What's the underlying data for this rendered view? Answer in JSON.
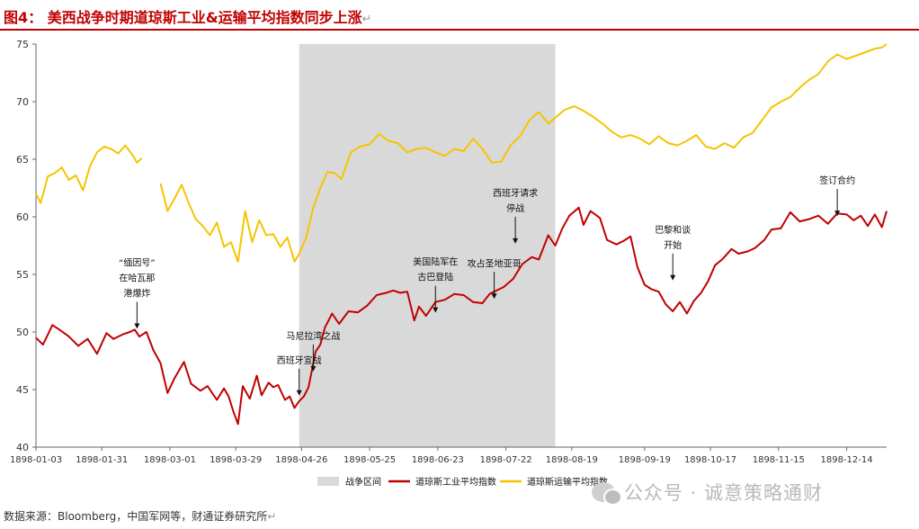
{
  "title": "图4：  美西战争时期道琼斯工业&运输平均指数同步上涨",
  "title_return_mark": "↵",
  "source": "数据来源：Bloomberg，中国军网等，财通证券研究所",
  "source_return_mark": "↵",
  "watermark": "公众号 · 诚意策略通财",
  "watermark_icon": "wechat-icon",
  "colors": {
    "industrial": "#c00000",
    "transport": "#f5c400",
    "war_band": "#d9d9d9",
    "title": "#c00000"
  },
  "chart_data": {
    "type": "line",
    "xlabel": "",
    "ylabel": "",
    "ylim": [
      40,
      75
    ],
    "yticks": [
      40,
      45,
      50,
      55,
      60,
      65,
      70,
      75
    ],
    "x_start": "1898-01-03",
    "x_end": "1898-12-31",
    "xticks": [
      "1898-01-03",
      "1898-01-31",
      "1898-03-01",
      "1898-03-29",
      "1898-04-26",
      "1898-05-25",
      "1898-06-23",
      "1898-07-22",
      "1898-08-19",
      "1898-09-19",
      "1898-10-17",
      "1898-11-15",
      "1898-12-14"
    ],
    "grid": false,
    "legend_position": "bottom",
    "shaded_region": {
      "name": "战争区间",
      "start": "1898-04-25",
      "end": "1898-08-12"
    },
    "series": [
      {
        "name": "道琼斯工业平均指数",
        "color": "#c00000",
        "x": [
          "1898-01-03",
          "1898-01-06",
          "1898-01-10",
          "1898-01-13",
          "1898-01-17",
          "1898-01-21",
          "1898-01-25",
          "1898-01-29",
          "1898-02-02",
          "1898-02-05",
          "1898-02-09",
          "1898-02-12",
          "1898-02-14",
          "1898-02-16",
          "1898-02-19",
          "1898-02-22",
          "1898-02-25",
          "1898-02-28",
          "1898-03-03",
          "1898-03-07",
          "1898-03-10",
          "1898-03-14",
          "1898-03-17",
          "1898-03-21",
          "1898-03-24",
          "1898-03-26",
          "1898-03-28",
          "1898-03-30",
          "1898-04-01",
          "1898-04-04",
          "1898-04-07",
          "1898-04-09",
          "1898-04-12",
          "1898-04-14",
          "1898-04-16",
          "1898-04-19",
          "1898-04-21",
          "1898-04-23",
          "1898-04-25",
          "1898-04-27",
          "1898-04-29",
          "1898-05-02",
          "1898-05-04",
          "1898-05-06",
          "1898-05-09",
          "1898-05-12",
          "1898-05-16",
          "1898-05-20",
          "1898-05-24",
          "1898-05-28",
          "1898-06-01",
          "1898-06-04",
          "1898-06-07",
          "1898-06-10",
          "1898-06-13",
          "1898-06-15",
          "1898-06-18",
          "1898-06-22",
          "1898-06-26",
          "1898-06-30",
          "1898-07-04",
          "1898-07-08",
          "1898-07-12",
          "1898-07-15",
          "1898-07-18",
          "1898-07-21",
          "1898-07-25",
          "1898-07-29",
          "1898-08-02",
          "1898-08-05",
          "1898-08-09",
          "1898-08-12",
          "1898-08-15",
          "1898-08-18",
          "1898-08-22",
          "1898-08-24",
          "1898-08-27",
          "1898-08-31",
          "1898-09-03",
          "1898-09-07",
          "1898-09-10",
          "1898-09-13",
          "1898-09-16",
          "1898-09-19",
          "1898-09-22",
          "1898-09-25",
          "1898-09-28",
          "1898-10-01",
          "1898-10-04",
          "1898-10-07",
          "1898-10-10",
          "1898-10-13",
          "1898-10-16",
          "1898-10-19",
          "1898-10-22",
          "1898-10-26",
          "1898-10-29",
          "1898-11-02",
          "1898-11-05",
          "1898-11-09",
          "1898-11-12",
          "1898-11-16",
          "1898-11-20",
          "1898-11-24",
          "1898-11-28",
          "1898-12-02",
          "1898-12-06",
          "1898-12-10",
          "1898-12-14",
          "1898-12-17",
          "1898-12-20",
          "1898-12-23",
          "1898-12-26",
          "1898-12-29",
          "1898-12-31"
        ],
        "values": [
          49.5,
          48.9,
          50.6,
          50.2,
          49.6,
          48.8,
          49.4,
          48.1,
          49.9,
          49.4,
          49.8,
          50.0,
          50.2,
          49.6,
          50.0,
          48.4,
          47.3,
          44.7,
          46.0,
          47.4,
          45.5,
          44.9,
          45.3,
          44.1,
          45.1,
          44.4,
          43.1,
          42.0,
          45.3,
          44.2,
          46.2,
          44.5,
          45.6,
          45.2,
          45.4,
          44.1,
          44.4,
          43.4,
          44.0,
          44.4,
          45.2,
          48.3,
          48.9,
          50.4,
          51.6,
          50.7,
          51.8,
          51.7,
          52.3,
          53.2,
          53.4,
          53.6,
          53.4,
          53.5,
          51.0,
          52.2,
          51.4,
          52.6,
          52.8,
          53.3,
          53.2,
          52.6,
          52.5,
          53.3,
          53.6,
          53.9,
          54.6,
          55.9,
          56.5,
          56.3,
          58.4,
          57.5,
          59.0,
          60.1,
          60.8,
          59.3,
          60.5,
          59.9,
          58.0,
          57.6,
          57.9,
          58.3,
          55.6,
          54.1,
          53.7,
          53.5,
          52.4,
          51.8,
          52.6,
          51.6,
          52.7,
          53.4,
          54.4,
          55.8,
          56.3,
          57.2,
          56.8,
          57.0,
          57.3,
          58.0,
          58.9,
          59.0,
          60.4,
          59.6,
          59.8,
          60.1,
          59.4,
          60.3,
          60.2,
          59.7,
          60.1,
          59.2,
          60.2,
          59.1,
          60.5
        ]
      },
      {
        "name": "道琼斯运输平均指数",
        "color": "#f5c400",
        "x": [
          "1898-01-03",
          "1898-01-05",
          "1898-01-08",
          "1898-01-11",
          "1898-01-14",
          "1898-01-17",
          "1898-01-20",
          "1898-01-23",
          "1898-01-26",
          "1898-01-29",
          "1898-02-01",
          "1898-02-04",
          "1898-02-07",
          "1898-02-10",
          "1898-02-13",
          "1898-02-15",
          "1898-02-17",
          null,
          "1898-02-25",
          "1898-02-28",
          "1898-03-03",
          "1898-03-06",
          "1898-03-09",
          "1898-03-12",
          "1898-03-15",
          "1898-03-18",
          "1898-03-21",
          "1898-03-24",
          "1898-03-27",
          "1898-03-30",
          "1898-04-02",
          "1898-04-05",
          "1898-04-08",
          "1898-04-11",
          "1898-04-14",
          "1898-04-17",
          "1898-04-20",
          "1898-04-23",
          "1898-04-25",
          "1898-04-28",
          "1898-05-01",
          "1898-05-04",
          "1898-05-07",
          "1898-05-10",
          "1898-05-13",
          "1898-05-17",
          "1898-05-21",
          "1898-05-25",
          "1898-05-29",
          "1898-06-02",
          "1898-06-06",
          "1898-06-10",
          "1898-06-14",
          "1898-06-18",
          "1898-06-22",
          "1898-06-26",
          "1898-06-30",
          "1898-07-04",
          "1898-07-08",
          "1898-07-12",
          "1898-07-16",
          "1898-07-20",
          "1898-07-24",
          "1898-07-28",
          "1898-08-01",
          "1898-08-05",
          "1898-08-09",
          "1898-08-12",
          "1898-08-16",
          "1898-08-20",
          "1898-08-24",
          "1898-08-28",
          "1898-09-01",
          "1898-09-05",
          "1898-09-09",
          "1898-09-13",
          "1898-09-17",
          "1898-09-21",
          "1898-09-25",
          "1898-09-29",
          "1898-10-03",
          "1898-10-07",
          "1898-10-11",
          "1898-10-15",
          "1898-10-19",
          "1898-10-23",
          "1898-10-27",
          "1898-10-31",
          "1898-11-04",
          "1898-11-08",
          "1898-11-12",
          "1898-11-16",
          "1898-11-20",
          "1898-11-24",
          "1898-11-28",
          "1898-12-02",
          "1898-12-06",
          "1898-12-10",
          "1898-12-14",
          "1898-12-18",
          "1898-12-22",
          "1898-12-26",
          "1898-12-29",
          "1898-12-31"
        ],
        "values": [
          62.0,
          61.2,
          63.5,
          63.8,
          64.3,
          63.2,
          63.6,
          62.3,
          64.4,
          65.6,
          66.1,
          65.9,
          65.5,
          66.2,
          65.4,
          64.7,
          65.1,
          null,
          62.9,
          60.5,
          61.6,
          62.8,
          61.2,
          59.8,
          59.2,
          58.4,
          59.5,
          57.4,
          57.8,
          56.1,
          60.5,
          57.8,
          59.7,
          58.4,
          58.5,
          57.4,
          58.2,
          56.1,
          56.8,
          58.2,
          60.8,
          62.5,
          63.9,
          63.8,
          63.3,
          65.6,
          66.1,
          66.3,
          67.2,
          66.6,
          66.4,
          65.6,
          65.9,
          66.0,
          65.6,
          65.3,
          65.9,
          65.7,
          66.8,
          65.9,
          64.7,
          64.8,
          66.2,
          67.0,
          68.4,
          69.1,
          68.1,
          68.6,
          69.3,
          69.6,
          69.2,
          68.7,
          68.1,
          67.4,
          66.9,
          67.1,
          66.8,
          66.3,
          67.0,
          66.4,
          66.2,
          66.6,
          67.1,
          66.1,
          65.9,
          66.4,
          66.0,
          66.9,
          67.3,
          68.4,
          69.5,
          70.0,
          70.4,
          71.2,
          71.9,
          72.4,
          73.5,
          74.1,
          73.7,
          74.0,
          74.3,
          74.6,
          74.7,
          75.0
        ]
      }
    ],
    "annotations": [
      {
        "lines": [
          "“缅因号”",
          "在哈瓦那",
          "港爆炸"
        ],
        "x": "1898-02-15",
        "y": 49.8
      },
      {
        "lines": [
          "西班牙宣战"
        ],
        "x": "1898-04-25",
        "y": 44.0
      },
      {
        "lines": [
          "马尼拉湾之战"
        ],
        "x": "1898-05-01",
        "y": 46.1
      },
      {
        "lines": [
          "美国陆军在",
          "古巴登陆"
        ],
        "x": "1898-06-22",
        "y": 51.2
      },
      {
        "lines": [
          "攻占圣地亚哥"
        ],
        "x": "1898-07-17",
        "y": 52.4
      },
      {
        "lines": [
          "西班牙请求",
          "停战"
        ],
        "x": "1898-07-26",
        "y": 57.2
      },
      {
        "lines": [
          "巴黎和谈",
          "开始"
        ],
        "x": "1898-10-01",
        "y": 54.0
      },
      {
        "lines": [
          "签订合约"
        ],
        "x": "1898-12-10",
        "y": 59.6
      }
    ]
  }
}
